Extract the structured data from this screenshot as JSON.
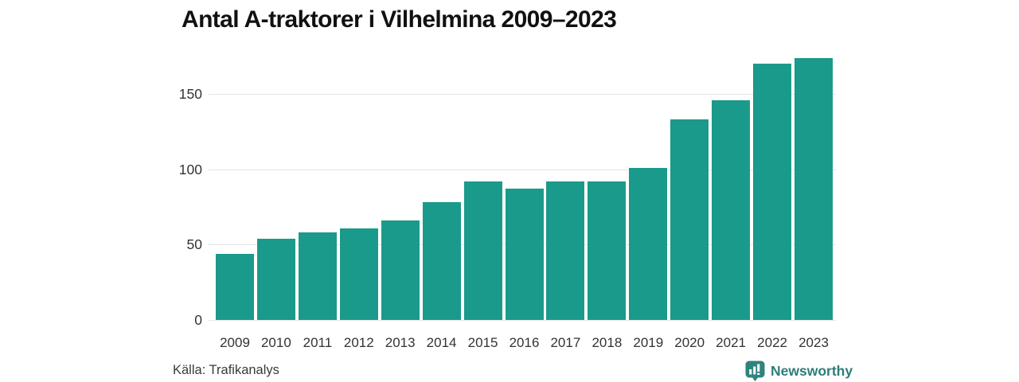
{
  "title": "Antal A-traktorer i Vilhelmina 2009–2023",
  "source": "Källa: Trafikanalys",
  "branding": {
    "name": "Newsworthy",
    "icon": "newsworthy-pin-chart-icon"
  },
  "colors": {
    "background": "#FFFFFF",
    "bar": "#1A9A8A",
    "grid": "#E4E4E4",
    "title": "#111111",
    "axis_text": "#333333",
    "logo_icon": "#2F837C",
    "logo_text": "#2E7D77"
  },
  "chart_data": {
    "type": "bar",
    "title": "Antal A-traktorer i Vilhelmina 2009–2023",
    "categories": [
      "2009",
      "2010",
      "2011",
      "2012",
      "2013",
      "2014",
      "2015",
      "2016",
      "2017",
      "2018",
      "2019",
      "2020",
      "2021",
      "2022",
      "2023"
    ],
    "values": [
      44,
      54,
      58,
      61,
      66,
      78,
      92,
      87,
      92,
      92,
      101,
      133,
      146,
      170,
      174
    ],
    "xlabel": "",
    "ylabel": "",
    "yticks": [
      0,
      50,
      100,
      150
    ],
    "ylim": [
      0,
      176
    ],
    "grid": true,
    "legend": false,
    "bar_color": "#1A9A8A"
  }
}
